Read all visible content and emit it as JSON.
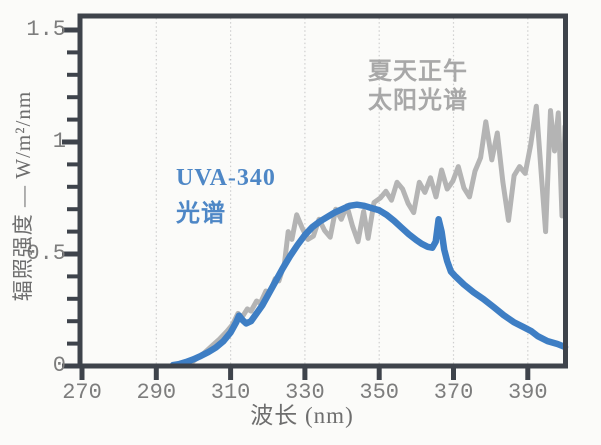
{
  "page": {
    "background": "#fbfbf9",
    "frame_color": "#3e434b",
    "grid_color": "#cfcfcf",
    "tick_label_color": "#7d7d7d"
  },
  "chart_data": {
    "type": "line",
    "title": "",
    "xlabel": "波长 (nm)",
    "ylabel": "辐照强度 — W/m²/nm",
    "xlim": [
      270,
      400
    ],
    "ylim": [
      0,
      1.57
    ],
    "x_ticks": [
      {
        "v": 270,
        "label": "270"
      },
      {
        "v": 290,
        "label": "290"
      },
      {
        "v": 310,
        "label": "310"
      },
      {
        "v": 330,
        "label": "330"
      },
      {
        "v": 350,
        "label": "350"
      },
      {
        "v": 370,
        "label": "370"
      },
      {
        "v": 390,
        "label": "390"
      }
    ],
    "y_ticks": [
      {
        "v": 0,
        "label": "0"
      },
      {
        "v": 0.5,
        "label": "0.5"
      },
      {
        "v": 1,
        "label": "1"
      },
      {
        "v": 1.5,
        "label": "1.5"
      }
    ],
    "y_minor_tick_step": 0.1,
    "grid": {
      "vertical_dotted_at": [
        290,
        310,
        330,
        350,
        370,
        390
      ],
      "horizontal": false
    },
    "annotations": [
      {
        "id": "uva",
        "lines": [
          "UVA-340",
          "光谱"
        ],
        "color": "#4e87c6"
      },
      {
        "id": "sun",
        "lines": [
          "夏天正午",
          "太阳光谱"
        ],
        "color": "#a8a8a8"
      }
    ],
    "series": [
      {
        "name": "夏天正午太阳光谱",
        "color": "#b4b4b4",
        "stroke_width": 5,
        "points": [
          [
            299,
            0.01
          ],
          [
            301,
            0.035
          ],
          [
            303,
            0.06
          ],
          [
            305,
            0.09
          ],
          [
            307,
            0.12
          ],
          [
            309,
            0.155
          ],
          [
            310.5,
            0.185
          ],
          [
            312,
            0.235
          ],
          [
            313,
            0.215
          ],
          [
            314.5,
            0.255
          ],
          [
            315.5,
            0.245
          ],
          [
            317,
            0.29
          ],
          [
            318,
            0.28
          ],
          [
            319.5,
            0.335
          ],
          [
            320.5,
            0.325
          ],
          [
            322,
            0.39
          ],
          [
            323,
            0.38
          ],
          [
            324.5,
            0.46
          ],
          [
            325.5,
            0.6
          ],
          [
            326.5,
            0.565
          ],
          [
            327.8,
            0.675
          ],
          [
            329.3,
            0.615
          ],
          [
            330.8,
            0.565
          ],
          [
            332.3,
            0.58
          ],
          [
            333.8,
            0.655
          ],
          [
            335.3,
            0.605
          ],
          [
            336.8,
            0.575
          ],
          [
            338.3,
            0.7
          ],
          [
            339.8,
            0.655
          ],
          [
            341.3,
            0.715
          ],
          [
            342.8,
            0.625
          ],
          [
            344.3,
            0.555
          ],
          [
            345.8,
            0.69
          ],
          [
            347,
            0.57
          ],
          [
            348.6,
            0.73
          ],
          [
            350.3,
            0.75
          ],
          [
            351.8,
            0.78
          ],
          [
            353.3,
            0.74
          ],
          [
            354.8,
            0.82
          ],
          [
            356.3,
            0.79
          ],
          [
            357.8,
            0.725
          ],
          [
            359.3,
            0.685
          ],
          [
            360.8,
            0.82
          ],
          [
            362.3,
            0.775
          ],
          [
            363.8,
            0.84
          ],
          [
            365.3,
            0.755
          ],
          [
            366.8,
            0.875
          ],
          [
            368.3,
            0.79
          ],
          [
            369.8,
            0.825
          ],
          [
            371.3,
            0.89
          ],
          [
            372.8,
            0.795
          ],
          [
            374.3,
            0.755
          ],
          [
            375.8,
            0.87
          ],
          [
            377.3,
            0.93
          ],
          [
            378.7,
            1.09
          ],
          [
            380.3,
            0.92
          ],
          [
            381.8,
            1.04
          ],
          [
            383.3,
            0.82
          ],
          [
            384.8,
            0.65
          ],
          [
            386.3,
            0.85
          ],
          [
            387.8,
            0.89
          ],
          [
            389.3,
            0.86
          ],
          [
            390.8,
            0.99
          ],
          [
            392.3,
            1.16
          ],
          [
            393.8,
            0.82
          ],
          [
            394.8,
            0.6
          ],
          [
            396.1,
            1.14
          ],
          [
            397.2,
            0.96
          ],
          [
            398.2,
            1.13
          ],
          [
            399.2,
            0.67
          ],
          [
            400,
            1.07
          ]
        ]
      },
      {
        "name": "UVA-340光谱",
        "color": "#3e7ec4",
        "stroke_width": 6.5,
        "points": [
          [
            294.5,
            0.004
          ],
          [
            296,
            0.008
          ],
          [
            298,
            0.018
          ],
          [
            300,
            0.03
          ],
          [
            302,
            0.045
          ],
          [
            304,
            0.062
          ],
          [
            306,
            0.082
          ],
          [
            308,
            0.11
          ],
          [
            310,
            0.15
          ],
          [
            311.5,
            0.195
          ],
          [
            312.3,
            0.225
          ],
          [
            313.2,
            0.205
          ],
          [
            314.2,
            0.19
          ],
          [
            315.5,
            0.2
          ],
          [
            317,
            0.235
          ],
          [
            318.5,
            0.27
          ],
          [
            320,
            0.315
          ],
          [
            322,
            0.375
          ],
          [
            324,
            0.435
          ],
          [
            326,
            0.49
          ],
          [
            328,
            0.54
          ],
          [
            330,
            0.585
          ],
          [
            332,
            0.62
          ],
          [
            334,
            0.645
          ],
          [
            336,
            0.665
          ],
          [
            338,
            0.685
          ],
          [
            340,
            0.7
          ],
          [
            342,
            0.715
          ],
          [
            344,
            0.72
          ],
          [
            346,
            0.715
          ],
          [
            348,
            0.705
          ],
          [
            350,
            0.695
          ],
          [
            352,
            0.675
          ],
          [
            354,
            0.648
          ],
          [
            356,
            0.618
          ],
          [
            358,
            0.588
          ],
          [
            360,
            0.562
          ],
          [
            361.5,
            0.545
          ],
          [
            363,
            0.532
          ],
          [
            364.3,
            0.528
          ],
          [
            365.2,
            0.555
          ],
          [
            366,
            0.655
          ],
          [
            366.8,
            0.6
          ],
          [
            367.5,
            0.52
          ],
          [
            368.3,
            0.468
          ],
          [
            369.3,
            0.422
          ],
          [
            370.5,
            0.4
          ],
          [
            372.8,
            0.364
          ],
          [
            375.4,
            0.329
          ],
          [
            378.1,
            0.298
          ],
          [
            380.9,
            0.262
          ],
          [
            383.5,
            0.227
          ],
          [
            386.2,
            0.196
          ],
          [
            388.9,
            0.173
          ],
          [
            391,
            0.155
          ],
          [
            392.7,
            0.133
          ],
          [
            395.3,
            0.111
          ],
          [
            398,
            0.098
          ],
          [
            400,
            0.085
          ]
        ]
      }
    ]
  }
}
